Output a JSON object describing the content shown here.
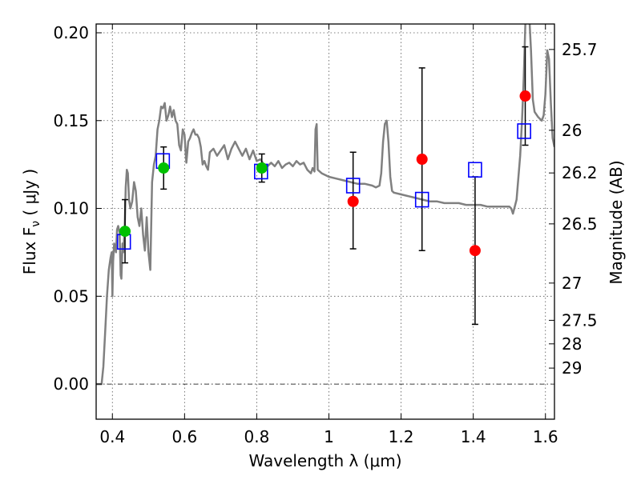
{
  "chart_data": {
    "type": "scatter",
    "xlabel": "Wavelength  λ (μm)",
    "ylabel": "Flux  F",
    "ylabel_sub": "ν",
    "ylabel_unit": "  ( μJy )",
    "y2label": "Magnitude (AB)",
    "xlim": [
      0.355,
      1.625
    ],
    "ylim": [
      -0.02,
      0.205
    ],
    "grid": true,
    "x_ticks": [
      {
        "value": 0.4,
        "label": "0.4"
      },
      {
        "value": 0.6,
        "label": "0.6"
      },
      {
        "value": 0.8,
        "label": "0.8"
      },
      {
        "value": 1.0,
        "label": "1"
      },
      {
        "value": 1.2,
        "label": "1.2"
      },
      {
        "value": 1.4,
        "label": "1.4"
      },
      {
        "value": 1.6,
        "label": "1.6"
      }
    ],
    "y_ticks": [
      {
        "value": 0.0,
        "label": "0.00"
      },
      {
        "value": 0.05,
        "label": "0.05"
      },
      {
        "value": 0.1,
        "label": "0.10"
      },
      {
        "value": 0.15,
        "label": "0.15"
      },
      {
        "value": 0.2,
        "label": "0.20"
      }
    ],
    "y2_ticks": [
      {
        "flux": 0.1905,
        "label": "25.7"
      },
      {
        "flux": 0.1445,
        "label": "26"
      },
      {
        "flux": 0.1202,
        "label": "26.2"
      },
      {
        "flux": 0.0912,
        "label": "26.5"
      },
      {
        "flux": 0.0575,
        "label": "27"
      },
      {
        "flux": 0.0363,
        "label": "27.5"
      },
      {
        "flux": 0.0229,
        "label": "28"
      },
      {
        "flux": 0.0091,
        "label": "29"
      }
    ],
    "model_color": "#808080",
    "model_spectrum": [
      [
        0.355,
        0.0
      ],
      [
        0.37,
        0.0
      ],
      [
        0.375,
        0.01
      ],
      [
        0.38,
        0.03
      ],
      [
        0.385,
        0.05
      ],
      [
        0.39,
        0.065
      ],
      [
        0.395,
        0.072
      ],
      [
        0.398,
        0.075
      ],
      [
        0.4,
        0.05
      ],
      [
        0.402,
        0.07
      ],
      [
        0.405,
        0.08
      ],
      [
        0.41,
        0.075
      ],
      [
        0.413,
        0.088
      ],
      [
        0.416,
        0.09
      ],
      [
        0.42,
        0.086
      ],
      [
        0.423,
        0.062
      ],
      [
        0.425,
        0.06
      ],
      [
        0.428,
        0.08
      ],
      [
        0.43,
        0.075
      ],
      [
        0.434,
        0.088
      ],
      [
        0.437,
        0.112
      ],
      [
        0.44,
        0.122
      ],
      [
        0.443,
        0.12
      ],
      [
        0.446,
        0.105
      ],
      [
        0.45,
        0.1
      ],
      [
        0.455,
        0.104
      ],
      [
        0.46,
        0.115
      ],
      [
        0.465,
        0.11
      ],
      [
        0.47,
        0.095
      ],
      [
        0.475,
        0.09
      ],
      [
        0.48,
        0.1
      ],
      [
        0.485,
        0.085
      ],
      [
        0.49,
        0.076
      ],
      [
        0.495,
        0.095
      ],
      [
        0.5,
        0.075
      ],
      [
        0.505,
        0.065
      ],
      [
        0.51,
        0.115
      ],
      [
        0.515,
        0.125
      ],
      [
        0.52,
        0.13
      ],
      [
        0.525,
        0.145
      ],
      [
        0.53,
        0.15
      ],
      [
        0.535,
        0.158
      ],
      [
        0.54,
        0.157
      ],
      [
        0.545,
        0.16
      ],
      [
        0.55,
        0.15
      ],
      [
        0.555,
        0.153
      ],
      [
        0.56,
        0.158
      ],
      [
        0.565,
        0.152
      ],
      [
        0.57,
        0.156
      ],
      [
        0.575,
        0.15
      ],
      [
        0.58,
        0.148
      ],
      [
        0.585,
        0.136
      ],
      [
        0.59,
        0.133
      ],
      [
        0.595,
        0.145
      ],
      [
        0.6,
        0.142
      ],
      [
        0.605,
        0.126
      ],
      [
        0.61,
        0.138
      ],
      [
        0.615,
        0.14
      ],
      [
        0.62,
        0.143
      ],
      [
        0.625,
        0.145
      ],
      [
        0.63,
        0.142
      ],
      [
        0.635,
        0.142
      ],
      [
        0.64,
        0.14
      ],
      [
        0.645,
        0.135
      ],
      [
        0.65,
        0.125
      ],
      [
        0.655,
        0.127
      ],
      [
        0.66,
        0.124
      ],
      [
        0.665,
        0.122
      ],
      [
        0.67,
        0.132
      ],
      [
        0.68,
        0.134
      ],
      [
        0.69,
        0.13
      ],
      [
        0.7,
        0.133
      ],
      [
        0.71,
        0.136
      ],
      [
        0.72,
        0.128
      ],
      [
        0.73,
        0.134
      ],
      [
        0.74,
        0.138
      ],
      [
        0.75,
        0.134
      ],
      [
        0.76,
        0.13
      ],
      [
        0.77,
        0.134
      ],
      [
        0.78,
        0.128
      ],
      [
        0.79,
        0.133
      ],
      [
        0.8,
        0.127
      ],
      [
        0.81,
        0.128
      ],
      [
        0.82,
        0.125
      ],
      [
        0.83,
        0.124
      ],
      [
        0.84,
        0.126
      ],
      [
        0.85,
        0.124
      ],
      [
        0.86,
        0.127
      ],
      [
        0.87,
        0.123
      ],
      [
        0.88,
        0.125
      ],
      [
        0.89,
        0.126
      ],
      [
        0.9,
        0.124
      ],
      [
        0.91,
        0.127
      ],
      [
        0.92,
        0.125
      ],
      [
        0.93,
        0.126
      ],
      [
        0.94,
        0.122
      ],
      [
        0.95,
        0.12
      ],
      [
        0.955,
        0.123
      ],
      [
        0.96,
        0.121
      ],
      [
        0.963,
        0.145
      ],
      [
        0.966,
        0.148
      ],
      [
        0.969,
        0.122
      ],
      [
        0.98,
        0.12
      ],
      [
        1.0,
        0.118
      ],
      [
        1.02,
        0.117
      ],
      [
        1.04,
        0.116
      ],
      [
        1.06,
        0.115
      ],
      [
        1.08,
        0.114
      ],
      [
        1.1,
        0.114
      ],
      [
        1.12,
        0.113
      ],
      [
        1.13,
        0.112
      ],
      [
        1.14,
        0.113
      ],
      [
        1.145,
        0.12
      ],
      [
        1.15,
        0.138
      ],
      [
        1.155,
        0.148
      ],
      [
        1.16,
        0.15
      ],
      [
        1.165,
        0.138
      ],
      [
        1.17,
        0.118
      ],
      [
        1.175,
        0.11
      ],
      [
        1.18,
        0.109
      ],
      [
        1.2,
        0.108
      ],
      [
        1.22,
        0.107
      ],
      [
        1.24,
        0.106
      ],
      [
        1.26,
        0.105
      ],
      [
        1.28,
        0.104
      ],
      [
        1.3,
        0.104
      ],
      [
        1.32,
        0.103
      ],
      [
        1.34,
        0.103
      ],
      [
        1.36,
        0.103
      ],
      [
        1.38,
        0.102
      ],
      [
        1.4,
        0.102
      ],
      [
        1.42,
        0.102
      ],
      [
        1.44,
        0.101
      ],
      [
        1.46,
        0.101
      ],
      [
        1.48,
        0.101
      ],
      [
        1.5,
        0.101
      ],
      [
        1.505,
        0.1
      ],
      [
        1.51,
        0.097
      ],
      [
        1.52,
        0.105
      ],
      [
        1.53,
        0.13
      ],
      [
        1.535,
        0.15
      ],
      [
        1.54,
        0.175
      ],
      [
        1.545,
        0.21
      ],
      [
        1.555,
        0.21
      ],
      [
        1.56,
        0.19
      ],
      [
        1.565,
        0.162
      ],
      [
        1.57,
        0.155
      ],
      [
        1.58,
        0.152
      ],
      [
        1.59,
        0.15
      ],
      [
        1.595,
        0.153
      ],
      [
        1.6,
        0.165
      ],
      [
        1.605,
        0.19
      ],
      [
        1.61,
        0.185
      ],
      [
        1.615,
        0.16
      ],
      [
        1.62,
        0.14
      ],
      [
        1.625,
        0.135
      ]
    ],
    "model_points": {
      "marker": "open-square",
      "color": "#0000ff",
      "points": [
        [
          0.432,
          0.081
        ],
        [
          0.54,
          0.127
        ],
        [
          0.812,
          0.121
        ],
        [
          1.067,
          0.113
        ],
        [
          1.258,
          0.105
        ],
        [
          1.405,
          0.122
        ],
        [
          1.541,
          0.144
        ]
      ]
    },
    "detections": {
      "marker": "filled-circle",
      "color": "#00c000",
      "points": [
        {
          "x": 0.435,
          "y": 0.087,
          "err_low": 0.018,
          "err_high": 0.018
        },
        {
          "x": 0.542,
          "y": 0.123,
          "err_low": 0.012,
          "err_high": 0.012
        },
        {
          "x": 0.814,
          "y": 0.123,
          "err_low": 0.008,
          "err_high": 0.008
        }
      ]
    },
    "low_significance": {
      "marker": "filled-circle",
      "color": "#ff0000",
      "points": [
        {
          "x": 1.067,
          "y": 0.104,
          "err_low": 0.027,
          "err_high": 0.028
        },
        {
          "x": 1.258,
          "y": 0.128,
          "err_low": 0.052,
          "err_high": 0.052
        },
        {
          "x": 1.405,
          "y": 0.076,
          "err_low": 0.042,
          "err_high": 0.042
        },
        {
          "x": 1.544,
          "y": 0.164,
          "err_low": 0.028,
          "err_high": 0.028
        }
      ]
    },
    "zero_line": 0.0
  }
}
